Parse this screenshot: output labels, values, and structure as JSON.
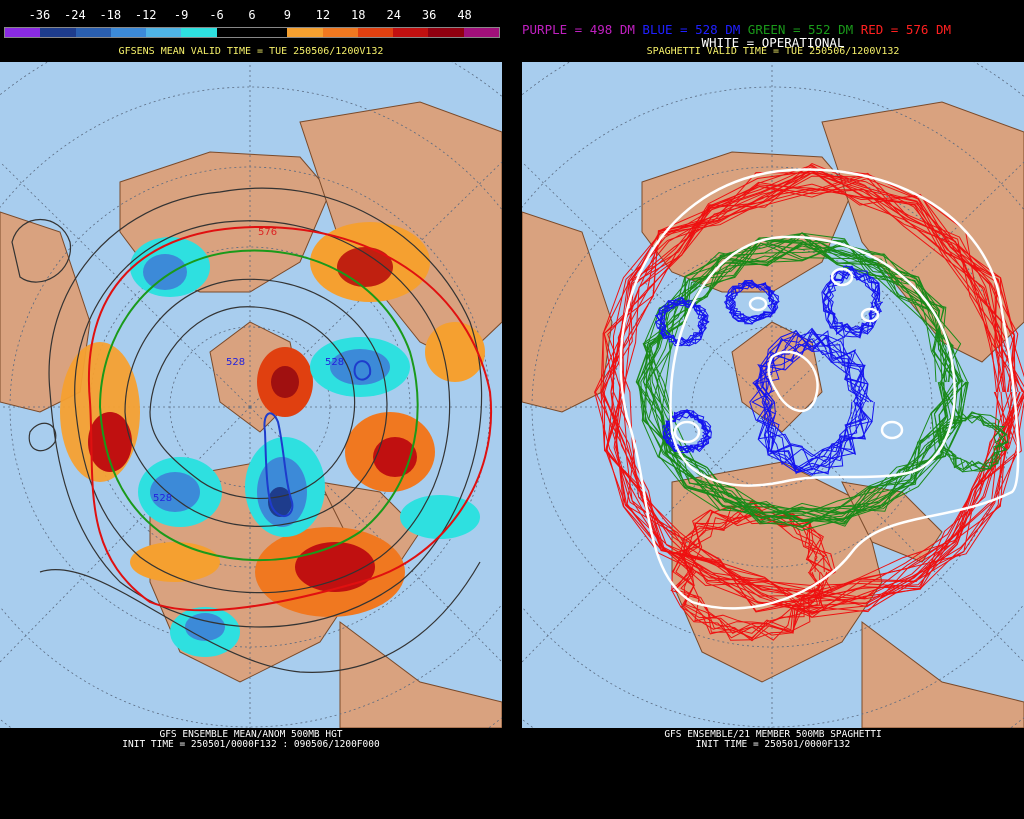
{
  "left": {
    "colorbar": {
      "labels": [
        "-36",
        "-24",
        "-18",
        "-12",
        "-9",
        "-6",
        "6",
        "9",
        "12",
        "18",
        "24",
        "36",
        "48"
      ],
      "colors": [
        "#8a2be2",
        "#1e3c8c",
        "#2a5fb0",
        "#3c8ad8",
        "#4fb4e6",
        "#2ee0e0",
        "#000000",
        "#000000",
        "#f5a030",
        "#f07820",
        "#e04010",
        "#c01010",
        "#900010",
        "#a0107a"
      ]
    },
    "valid_time": "GFSENS MEAN VALID TIME = TUE 250506/1200V132",
    "footer_line1": "GFS ENSEMBLE MEAN/ANOM 500MB HGT",
    "footer_line2": "INIT TIME = 250501/0000F132 : 090506/1200F000",
    "contour_labels": [
      "528",
      "528",
      "528",
      "576"
    ]
  },
  "right": {
    "legend": {
      "purple": "PURPLE = 498 DM",
      "blue": "BLUE = 528 DM",
      "green": "GREEN = 552 DM",
      "red": "RED = 576 DM",
      "white": "WHITE = OPERATIONAL"
    },
    "valid_time": "SPAGHETTI VALID TIME = TUE 250506/1200V132",
    "footer_line1": "GFS ENSEMBLE/21 MEMBER 500MB SPAGHETTI",
    "footer_line2": "INIT TIME = 250501/0000F132"
  },
  "colors": {
    "ocean": "#a8cdee",
    "land": "#d9a27f",
    "coast": "#7a4a2a",
    "grid": "#5a6a80"
  }
}
